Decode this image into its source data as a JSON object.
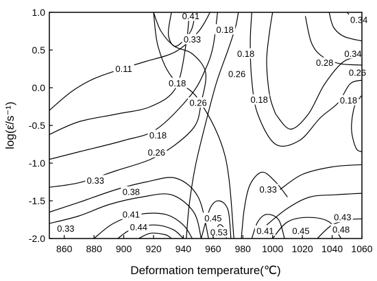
{
  "chart_data": {
    "type": "contour",
    "title": "",
    "xlabel": "Deformation temperature(℃)",
    "ylabel": "log(ε̇/s⁻¹)",
    "xlim": [
      850,
      1060
    ],
    "ylim": [
      -2.0,
      1.0
    ],
    "x_ticks": [
      {
        "value": 860,
        "label": "860"
      },
      {
        "value": 880,
        "label": "880"
      },
      {
        "value": 900,
        "label": "900"
      },
      {
        "value": 920,
        "label": "920"
      },
      {
        "value": 940,
        "label": "940"
      },
      {
        "value": 960,
        "label": "960"
      },
      {
        "value": 980,
        "label": "980"
      },
      {
        "value": 1000,
        "label": "1000"
      },
      {
        "value": 1020,
        "label": "1020"
      },
      {
        "value": 1040,
        "label": "1040"
      },
      {
        "value": 1060,
        "label": "1060"
      }
    ],
    "y_ticks": [
      {
        "value": 1.0,
        "label": "1.0"
      },
      {
        "value": 0.5,
        "label": "0.5"
      },
      {
        "value": 0.0,
        "label": "0.0"
      },
      {
        "value": -0.5,
        "label": "-0.5"
      },
      {
        "value": -1.0,
        "label": "-1.0"
      },
      {
        "value": -1.5,
        "label": "-1.5"
      },
      {
        "value": -2.0,
        "label": "-2.0"
      }
    ],
    "contours": [
      {
        "level": "0.11",
        "points": [
          [
            850,
            -0.3
          ],
          [
            865,
            -0.05
          ],
          [
            880,
            0.12
          ],
          [
            900,
            0.26
          ],
          [
            915,
            0.35
          ],
          [
            935,
            0.48
          ],
          [
            950,
            0.74
          ],
          [
            958,
            1.0
          ]
        ]
      },
      {
        "level": "0.11",
        "points": [
          [
            942,
            -2.0
          ],
          [
            944,
            -1.55
          ],
          [
            948,
            -1.05
          ],
          [
            954,
            -0.55
          ],
          [
            962,
            0.05
          ],
          [
            970,
            0.5
          ],
          [
            975,
            0.8
          ],
          [
            977,
            1.0
          ]
        ]
      },
      {
        "level": "0.18",
        "points": [
          [
            850,
            -0.62
          ],
          [
            870,
            -0.45
          ],
          [
            895,
            -0.35
          ],
          [
            918,
            -0.25
          ],
          [
            935,
            0.0
          ],
          [
            942,
            0.6
          ],
          [
            944,
            1.0
          ]
        ]
      },
      {
        "level": "0.18",
        "points": [
          [
            920,
            1.0
          ],
          [
            923,
            0.55
          ],
          [
            932,
            0.15
          ],
          [
            950,
            -0.15
          ],
          [
            968,
            -0.9
          ],
          [
            974,
            -2.0
          ]
        ]
      },
      {
        "level": "0.26",
        "points": [
          [
            850,
            -0.95
          ],
          [
            870,
            -0.85
          ],
          [
            900,
            -0.7
          ],
          [
            922,
            -0.55
          ],
          [
            945,
            -0.1
          ],
          [
            955,
            0.25
          ],
          [
            960,
            0.55
          ],
          [
            963,
            1.0
          ]
        ]
      },
      {
        "level": "0.33",
        "points": [
          [
            850,
            -1.32
          ],
          [
            870,
            -1.26
          ],
          [
            895,
            -1.1
          ],
          [
            918,
            -0.95
          ],
          [
            935,
            -0.75
          ],
          [
            948,
            -0.5
          ],
          [
            952,
            -0.2
          ],
          [
            955,
            0.2
          ],
          [
            946,
            0.45
          ],
          [
            934,
            0.55
          ],
          [
            925,
            0.75
          ],
          [
            920,
            1.0
          ]
        ]
      },
      {
        "level": "0.38",
        "points": [
          [
            850,
            -1.65
          ],
          [
            870,
            -1.52
          ],
          [
            895,
            -1.35
          ],
          [
            915,
            -1.25
          ],
          [
            935,
            -1.2
          ],
          [
            950,
            -1.45
          ],
          [
            957,
            -2.0
          ]
        ]
      },
      {
        "level": "0.41",
        "points": [
          [
            850,
            -1.8
          ],
          [
            870,
            -1.7
          ],
          [
            890,
            -1.55
          ],
          [
            912,
            -1.45
          ],
          [
            932,
            -1.42
          ],
          [
            947,
            -1.65
          ],
          [
            952,
            -2.0
          ]
        ]
      },
      {
        "level": "0.44",
        "points": [
          [
            880,
            -2.0
          ],
          [
            893,
            -1.8
          ],
          [
            910,
            -1.68
          ],
          [
            928,
            -1.68
          ],
          [
            940,
            -1.82
          ],
          [
            946,
            -2.0
          ]
        ]
      },
      {
        "level": "0.48",
        "points": [
          [
            896,
            -2.0
          ],
          [
            905,
            -1.88
          ],
          [
            920,
            -1.82
          ],
          [
            933,
            -1.88
          ],
          [
            940,
            -2.0
          ]
        ]
      },
      {
        "level": "0.53",
        "points": [
          [
            910,
            -2.0
          ],
          [
            918,
            -1.93
          ],
          [
            928,
            -1.95
          ],
          [
            932,
            -2.0
          ]
        ]
      },
      {
        "level": "0.45",
        "points": [
          [
            952,
            -2.0
          ],
          [
            958,
            -1.6
          ],
          [
            964,
            -1.5
          ],
          [
            970,
            -1.62
          ],
          [
            972,
            -2.0
          ]
        ]
      },
      {
        "level": "0.53",
        "points": [
          [
            960,
            -2.0
          ],
          [
            964,
            -1.82
          ],
          [
            968,
            -1.88
          ],
          [
            969,
            -2.0
          ]
        ]
      },
      {
        "level": "0.33",
        "points": [
          [
            979,
            -2.0
          ],
          [
            981,
            -1.6
          ],
          [
            985,
            -1.28
          ],
          [
            993,
            -1.12
          ],
          [
            1002,
            -1.25
          ],
          [
            1010,
            -1.45
          ]
        ]
      },
      {
        "level": "0.41",
        "points": [
          [
            986,
            -2.0
          ],
          [
            990,
            -1.78
          ],
          [
            996,
            -1.68
          ],
          [
            1004,
            -1.75
          ],
          [
            1008,
            -2.0
          ]
        ]
      },
      {
        "level": "0.45",
        "points": [
          [
            1000,
            -2.0
          ],
          [
            1010,
            -1.78
          ],
          [
            1024,
            -1.72
          ],
          [
            1038,
            -1.78
          ],
          [
            1046,
            -2.0
          ]
        ]
      },
      {
        "level": "0.43",
        "points": [
          [
            996,
            -1.82
          ],
          [
            1010,
            -1.6
          ],
          [
            1025,
            -1.45
          ],
          [
            1042,
            -1.42
          ],
          [
            1060,
            -1.4
          ]
        ]
      },
      {
        "level": "0.48",
        "points": [
          [
            1030,
            -2.0
          ],
          [
            1040,
            -1.82
          ],
          [
            1052,
            -1.75
          ],
          [
            1060,
            -1.74
          ]
        ]
      },
      {
        "level": "0.38",
        "points": [
          [
            1005,
            -1.35
          ],
          [
            1020,
            -1.15
          ],
          [
            1040,
            -1.05
          ],
          [
            1060,
            -1.02
          ]
        ]
      },
      {
        "level": "0.18",
        "points": [
          [
            1002,
            -0.35
          ],
          [
            998,
            -0.1
          ],
          [
            996,
            0.35
          ],
          [
            998,
            0.75
          ],
          [
            1000,
            1.0
          ]
        ]
      },
      {
        "level": "0.18",
        "points": [
          [
            1002,
            -0.35
          ],
          [
            1012,
            -0.55
          ],
          [
            1024,
            -0.35
          ],
          [
            1035,
            0.05
          ],
          [
            1048,
            0.35
          ],
          [
            1060,
            0.4
          ]
        ]
      },
      {
        "level": "0.26",
        "points": [
          [
            986,
            1.0
          ],
          [
            985,
            0.6
          ],
          [
            986,
            0.1
          ],
          [
            990,
            -0.35
          ],
          [
            1002,
            -0.75
          ],
          [
            1018,
            -0.7
          ],
          [
            1032,
            -0.4
          ],
          [
            1044,
            -0.2
          ],
          [
            1052,
            0.05
          ],
          [
            1060,
            0.1
          ]
        ]
      },
      {
        "level": "0.28",
        "points": [
          [
            1022,
            0.95
          ],
          [
            1026,
            0.6
          ],
          [
            1033,
            0.42
          ],
          [
            1045,
            0.32
          ],
          [
            1060,
            0.3
          ]
        ]
      },
      {
        "level": "0.34",
        "points": [
          [
            1038,
            1.0
          ],
          [
            1041,
            0.8
          ],
          [
            1048,
            0.68
          ],
          [
            1060,
            0.62
          ]
        ]
      },
      {
        "level": "0.34",
        "points": [
          [
            1050,
            1.0
          ],
          [
            1055,
            0.9
          ],
          [
            1060,
            0.88
          ]
        ]
      },
      {
        "level": "0.18",
        "points": [
          [
            1060,
            -0.1
          ],
          [
            1055,
            -0.25
          ],
          [
            1053,
            -0.55
          ],
          [
            1056,
            -0.8
          ],
          [
            1060,
            -0.85
          ]
        ]
      },
      {
        "level": "0.41",
        "points": [
          [
            932,
            1.0
          ],
          [
            930,
            0.7
          ],
          [
            935,
            0.55
          ],
          [
            945,
            0.75
          ],
          [
            948,
            1.0
          ]
        ]
      }
    ],
    "contour_labels": [
      {
        "text": "0.41",
        "x": 945,
        "y": 0.95
      },
      {
        "text": "0.33",
        "x": 946,
        "y": 0.64
      },
      {
        "text": "0.11",
        "x": 900,
        "y": 0.25
      },
      {
        "text": "0.18",
        "x": 936,
        "y": 0.06
      },
      {
        "text": "0.26",
        "x": 950,
        "y": -0.2
      },
      {
        "text": "0.18",
        "x": 968,
        "y": 0.77
      },
      {
        "text": "0.18",
        "x": 982,
        "y": 0.45
      },
      {
        "text": "0.26",
        "x": 976,
        "y": 0.18
      },
      {
        "text": "0.18",
        "x": 991,
        "y": -0.16
      },
      {
        "text": "0.18",
        "x": 1051,
        "y": -0.17
      },
      {
        "text": "0.34",
        "x": 1058,
        "y": 0.9
      },
      {
        "text": "0.34",
        "x": 1054,
        "y": 0.45
      },
      {
        "text": "0.28",
        "x": 1035,
        "y": 0.33
      },
      {
        "text": "0.26",
        "x": 1057,
        "y": 0.2
      },
      {
        "text": "0.18",
        "x": 923,
        "y": -0.63
      },
      {
        "text": "0.26",
        "x": 922,
        "y": -0.86
      },
      {
        "text": "0.33",
        "x": 881,
        "y": -1.23
      },
      {
        "text": "0.38",
        "x": 905,
        "y": -1.38
      },
      {
        "text": "0.41",
        "x": 905,
        "y": -1.68
      },
      {
        "text": "0.44",
        "x": 910,
        "y": -1.85
      },
      {
        "text": "0.33",
        "x": 861,
        "y": -1.87
      },
      {
        "text": "0.45",
        "x": 960,
        "y": -1.73
      },
      {
        "text": "0.53",
        "x": 964,
        "y": -1.92
      },
      {
        "text": "0.33",
        "x": 997,
        "y": -1.35
      },
      {
        "text": "0.41",
        "x": 995,
        "y": -1.9
      },
      {
        "text": "0.45",
        "x": 1019,
        "y": -1.9
      },
      {
        "text": "0.43",
        "x": 1047,
        "y": -1.72
      },
      {
        "text": "0.48",
        "x": 1046,
        "y": -1.88
      }
    ],
    "grid": false,
    "legend": "none"
  }
}
